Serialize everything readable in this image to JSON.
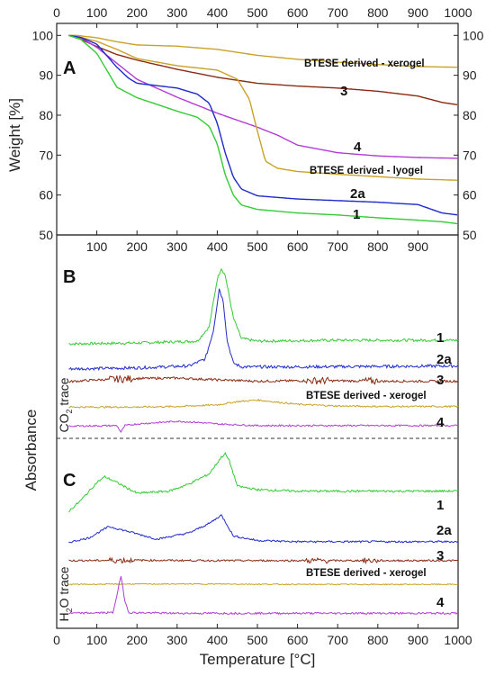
{
  "chart_data": [
    {
      "panel": "A",
      "type": "line",
      "xlabel": "Temperature [°C]",
      "ylabel": "Weight [%]",
      "xlim": [
        0,
        1000
      ],
      "ylim": [
        50,
        103
      ],
      "xticks": [
        0,
        100,
        200,
        300,
        400,
        500,
        600,
        700,
        800,
        900,
        1000
      ],
      "yticks": [
        50,
        60,
        70,
        80,
        90,
        100
      ],
      "series": [
        {
          "name": "BTESE derived - xerogel",
          "color": "#c9a227",
          "x": [
            30,
            50,
            100,
            150,
            200,
            300,
            400,
            500,
            600,
            700,
            800,
            900,
            1000
          ],
          "y": [
            100,
            100,
            99.4,
            98.4,
            97.6,
            97.3,
            96.5,
            95.0,
            94.0,
            93.3,
            92.7,
            92.2,
            92.0
          ]
        },
        {
          "name": "3",
          "color": "#8b2a10",
          "x": [
            30,
            60,
            100,
            150,
            200,
            300,
            400,
            500,
            600,
            700,
            800,
            900,
            960,
            1000
          ],
          "y": [
            100,
            99,
            97.2,
            95.2,
            93.8,
            91.5,
            89.5,
            88.0,
            87.3,
            86.8,
            86.0,
            84.8,
            83.2,
            82.6
          ]
        },
        {
          "name": "4",
          "color": "#b33bd6",
          "x": [
            30,
            60,
            100,
            150,
            200,
            300,
            400,
            500,
            550,
            600,
            700,
            800,
            900,
            1000
          ],
          "y": [
            100,
            99.4,
            97.0,
            93.0,
            89.0,
            84.5,
            80.5,
            77.0,
            75.0,
            72.5,
            70.6,
            69.8,
            69.4,
            69.2
          ]
        },
        {
          "name": "BTESE derived - lyogel",
          "color": "#c9a227",
          "x": [
            30,
            60,
            100,
            150,
            200,
            300,
            400,
            450,
            480,
            500,
            520,
            550,
            600,
            700,
            800,
            900,
            1000
          ],
          "y": [
            100,
            99.5,
            98.5,
            96.5,
            94.2,
            92.4,
            91.3,
            89.0,
            84.0,
            76.0,
            68.5,
            66.7,
            65.9,
            65.2,
            64.6,
            64.0,
            63.7
          ]
        },
        {
          "name": "2a",
          "color": "#1f2acc",
          "x": [
            30,
            60,
            100,
            150,
            180,
            200,
            300,
            350,
            380,
            400,
            420,
            440,
            460,
            500,
            600,
            700,
            800,
            900,
            960,
            1000
          ],
          "y": [
            100,
            99.5,
            97.8,
            92.0,
            89.2,
            88.0,
            86.8,
            85.3,
            83.0,
            78.0,
            70.5,
            64.5,
            61.5,
            59.8,
            59.0,
            58.6,
            58.2,
            57.6,
            55.5,
            55.0
          ]
        },
        {
          "name": "1",
          "color": "#33cc33",
          "x": [
            30,
            60,
            100,
            150,
            200,
            300,
            350,
            380,
            400,
            420,
            440,
            460,
            500,
            600,
            700,
            800,
            900,
            960,
            1000
          ],
          "y": [
            100,
            99,
            95.5,
            87.0,
            84.4,
            81.0,
            79.5,
            77.2,
            72.8,
            65.0,
            60.0,
            57.5,
            56.4,
            55.5,
            55.0,
            54.3,
            53.7,
            53.3,
            52.8
          ]
        }
      ]
    },
    {
      "panel": "B",
      "type": "line",
      "ylabel": "CO₂ trace",
      "xlim": [
        0,
        1000
      ],
      "series": [
        {
          "name": "1",
          "color": "#33cc33",
          "x": [
            30,
            200,
            350,
            380,
            400,
            410,
            420,
            440,
            460,
            500,
            700,
            1000
          ],
          "y": [
            0.06,
            0.07,
            0.09,
            0.25,
            0.78,
            0.9,
            0.82,
            0.35,
            0.12,
            0.09,
            0.1,
            0.1
          ]
        },
        {
          "name": "2a",
          "color": "#1f2acc",
          "x": [
            30,
            200,
            330,
            370,
            390,
            405,
            415,
            425,
            440,
            460,
            600,
            1000
          ],
          "y": [
            0.02,
            0.03,
            0.05,
            0.12,
            0.4,
            0.83,
            0.7,
            0.3,
            0.08,
            0.04,
            0.04,
            0.05
          ]
        },
        {
          "name": "3",
          "color": "#8b2a10",
          "x": [
            30,
            100,
            200,
            300,
            400,
            500,
            600,
            700,
            800,
            1000
          ],
          "y": [
            0.02,
            0.06,
            0.09,
            0.1,
            0.06,
            0.03,
            0.04,
            0.04,
            0.03,
            0.03
          ]
        },
        {
          "name": "BTESE derived - xerogel",
          "color": "#c9a227",
          "x": [
            30,
            200,
            300,
            400,
            450,
            500,
            550,
            600,
            700,
            800,
            1000
          ],
          "y": [
            0.03,
            0.03,
            0.04,
            0.07,
            0.13,
            0.16,
            0.12,
            0.08,
            0.05,
            0.04,
            0.04
          ]
        },
        {
          "name": "4",
          "color": "#b33bd6",
          "x": [
            30,
            150,
            160,
            170,
            200,
            300,
            350,
            400,
            500,
            600,
            1000
          ],
          "y": [
            0.01,
            0.02,
            -0.1,
            0.02,
            0.05,
            0.1,
            0.08,
            0.05,
            0.02,
            0.02,
            0.02
          ]
        }
      ]
    },
    {
      "panel": "C",
      "type": "line",
      "xlabel": "Temperature [°C]",
      "ylabel": "H₂O trace",
      "xlim": [
        0,
        1000
      ],
      "xticks": [
        0,
        100,
        200,
        300,
        400,
        500,
        600,
        700,
        800,
        900,
        1000
      ],
      "series": [
        {
          "name": "1",
          "color": "#33cc33",
          "x": [
            30,
            60,
            100,
            120,
            150,
            200,
            280,
            330,
            380,
            410,
            420,
            430,
            450,
            500,
            600,
            800,
            1000
          ],
          "y": [
            0.1,
            0.25,
            0.5,
            0.58,
            0.5,
            0.35,
            0.38,
            0.48,
            0.62,
            0.85,
            0.9,
            0.8,
            0.45,
            0.4,
            0.38,
            0.38,
            0.38
          ]
        },
        {
          "name": "2a",
          "color": "#1f2acc",
          "x": [
            30,
            80,
            130,
            180,
            250,
            330,
            380,
            410,
            420,
            440,
            500,
            600,
            800,
            1000
          ],
          "y": [
            0.05,
            0.12,
            0.3,
            0.22,
            0.1,
            0.2,
            0.35,
            0.48,
            0.38,
            0.15,
            0.08,
            0.06,
            0.06,
            0.06
          ]
        },
        {
          "name": "3",
          "color": "#8b2a10",
          "x": [
            30,
            200,
            400,
            600,
            800,
            1000
          ],
          "y": [
            0.03,
            0.04,
            0.03,
            0.03,
            0.03,
            0.03
          ]
        },
        {
          "name": "BTESE derived - xerogel",
          "color": "#c9a227",
          "x": [
            30,
            200,
            400,
            600,
            800,
            1000
          ],
          "y": [
            0.02,
            0.03,
            0.03,
            0.02,
            0.02,
            0.02
          ]
        },
        {
          "name": "4",
          "color": "#b33bd6",
          "x": [
            30,
            140,
            150,
            160,
            170,
            180,
            300,
            600,
            1000
          ],
          "y": [
            0.01,
            0.02,
            0.3,
            0.6,
            0.2,
            0.02,
            0.01,
            0.01,
            0.01
          ]
        }
      ]
    }
  ],
  "labels": {
    "panel_a": "A",
    "panel_b": "B",
    "panel_c": "C",
    "weight_axis": "Weight [%]",
    "absorbance_axis": "Absorbance",
    "temperature_axis": "Temperature [°C]",
    "co2_trace_prefix": "CO",
    "co2_trace_sub": "2",
    "co2_trace_suffix": " trace",
    "h2o_trace_prefix": "H",
    "h2o_trace_sub": "2",
    "h2o_trace_suffix": "O trace",
    "a_xerogel": "BTESE derived - xerogel",
    "a_3": "3",
    "a_4": "4",
    "a_lyogel": "BTESE derived - lyogel",
    "a_2a": "2a",
    "a_1": "1",
    "b_1": "1",
    "b_2a": "2a",
    "b_3": "3",
    "b_xerogel": "BTESE derived - xerogel",
    "b_4": "4",
    "c_1": "1",
    "c_2a": "2a",
    "c_3": "3",
    "c_xerogel": "BTESE derived - xerogel",
    "c_4": "4"
  }
}
